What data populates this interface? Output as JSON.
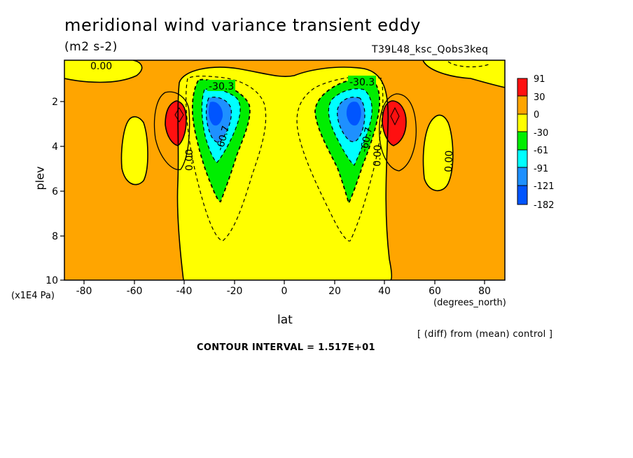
{
  "header": {
    "title": "meridional wind variance transient eddy",
    "units": "(m2 s-2)",
    "run_name": "T39L48_ksc_Qobs3keq"
  },
  "footer": {
    "note": "[ (diff) from (mean) control ]",
    "contour_interval": "CONTOUR INTERVAL = 1.517E+01"
  },
  "colors": {
    "red": "#ff1010",
    "orange": "#ffa500",
    "yellow": "#ffff00",
    "green": "#00ee00",
    "cyan": "#00ffff",
    "lightblue": "#1e90ff",
    "blue": "#0055ff"
  },
  "chart_data": {
    "type": "heatmap",
    "title": "meridional wind variance transient eddy",
    "xlabel": "lat",
    "xunits": "(degrees_north)",
    "ylabel": "plev",
    "yunits": "(x1E4 Pa)",
    "xlim": [
      -88,
      88
    ],
    "ylim": [
      10,
      0.2
    ],
    "xticks": [
      "-80",
      "-60",
      "-40",
      "-20",
      "0",
      "20",
      "40",
      "60",
      "80"
    ],
    "yticks": [
      "2",
      "4",
      "6",
      "8",
      "10"
    ],
    "legend": {
      "levels": [
        "91",
        "30",
        "0",
        "-30",
        "-61",
        "-91",
        "-121",
        "-182"
      ],
      "colors": [
        "#ff1010",
        "#ffa500",
        "#ffff00",
        "#00ee00",
        "#00ffff",
        "#1e90ff",
        "#0055ff"
      ]
    },
    "contour_labels": [
      {
        "text": "0.00",
        "lat": -75,
        "plev": 0.5
      },
      {
        "text": "-30.3",
        "lat": -25,
        "plev": 1.3
      },
      {
        "text": "-60.7",
        "lat": -24,
        "plev": 3.8
      },
      {
        "text": "0.00",
        "lat": -38,
        "plev": 4.3
      },
      {
        "text": "-30.3",
        "lat": 30,
        "plev": 1.2
      },
      {
        "text": "-60.7",
        "lat": 33,
        "plev": 4.0
      },
      {
        "text": "0.00",
        "lat": 38,
        "plev": 4.0
      },
      {
        "text": "0.00",
        "lat": 66,
        "plev": 4.2
      }
    ],
    "features": [
      {
        "name": "southern minimum",
        "lat": -28,
        "plev": 2.5,
        "value_range": "-182 to -121"
      },
      {
        "name": "northern minimum",
        "lat": 28,
        "plev": 2.5,
        "value_range": "-182 to -121"
      },
      {
        "name": "southern maximum",
        "lat": -43,
        "plev": 2.6,
        "value_range": "30 to 91"
      },
      {
        "name": "northern maximum",
        "lat": 44,
        "plev": 2.7,
        "value_range": "30 to 91"
      }
    ]
  }
}
